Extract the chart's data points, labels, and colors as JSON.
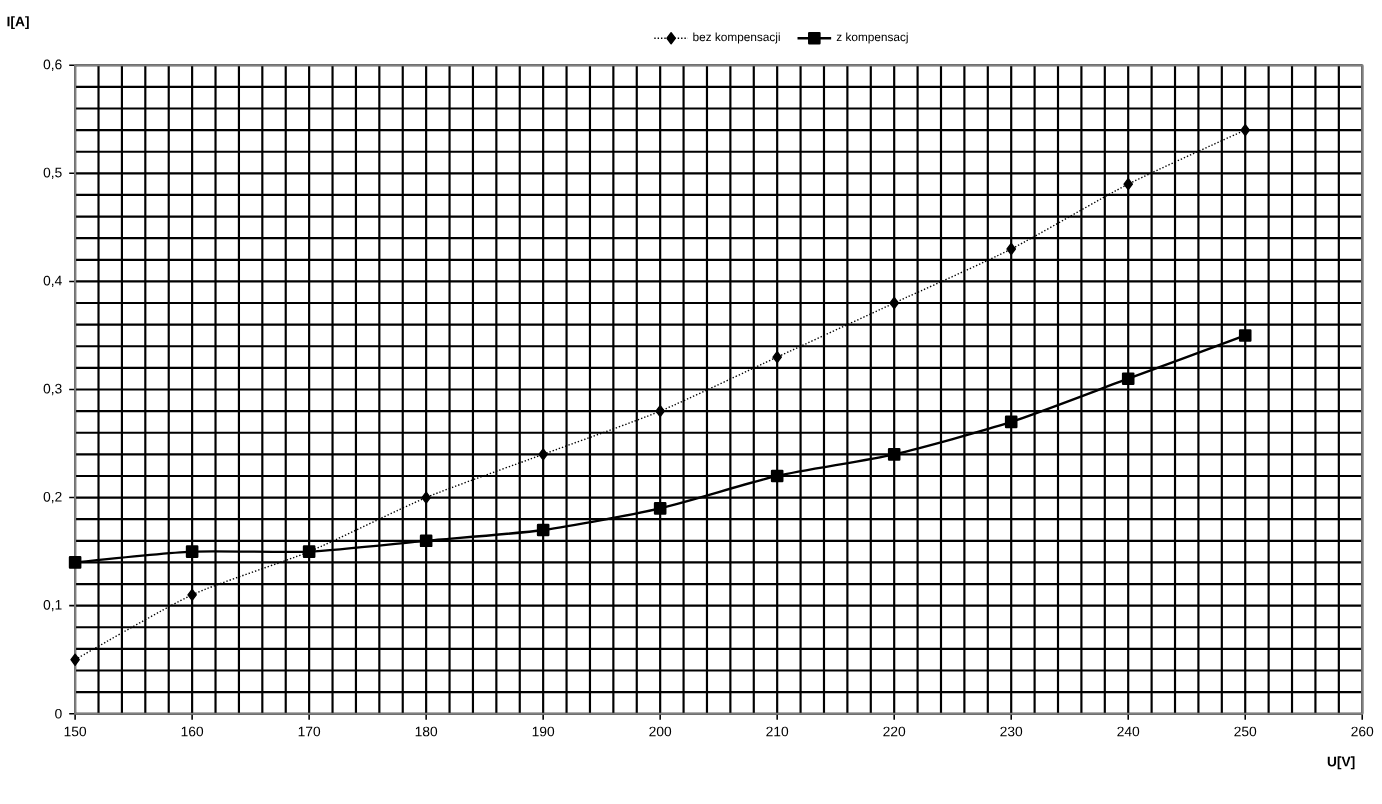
{
  "chart_data": {
    "type": "line",
    "xlabel": "U[V]",
    "ylabel": "I[A]",
    "x": [
      150,
      160,
      170,
      180,
      190,
      200,
      210,
      220,
      230,
      240,
      250
    ],
    "series": [
      {
        "name": "bez kompensacji",
        "color": "#000000",
        "marker": "diamond",
        "line_style": "dotted",
        "values": [
          0.05,
          0.11,
          0.15,
          0.2,
          0.24,
          0.28,
          0.33,
          0.38,
          0.43,
          0.49,
          0.54
        ]
      },
      {
        "name": "z kompensacj",
        "color": "#000000",
        "marker": "square",
        "line_style": "solid",
        "values": [
          0.14,
          0.15,
          0.15,
          0.16,
          0.17,
          0.19,
          0.22,
          0.24,
          0.27,
          0.31,
          0.35
        ]
      }
    ],
    "xlim": [
      150,
      260
    ],
    "xticks": [
      150,
      160,
      170,
      180,
      190,
      200,
      210,
      220,
      230,
      240,
      250,
      260
    ],
    "ylim": [
      0,
      0.6
    ],
    "yticks": [
      0,
      {
        "value": 0.1,
        "label": "0,1"
      },
      {
        "value": 0.2,
        "label": "0,2"
      },
      {
        "value": 0.3,
        "label": "0,3"
      },
      {
        "value": 0.4,
        "label": "0,4"
      },
      {
        "value": 0.5,
        "label": "0,5"
      },
      {
        "value": 0.6,
        "label": "0,6"
      }
    ],
    "grid": true,
    "legend": "top"
  }
}
